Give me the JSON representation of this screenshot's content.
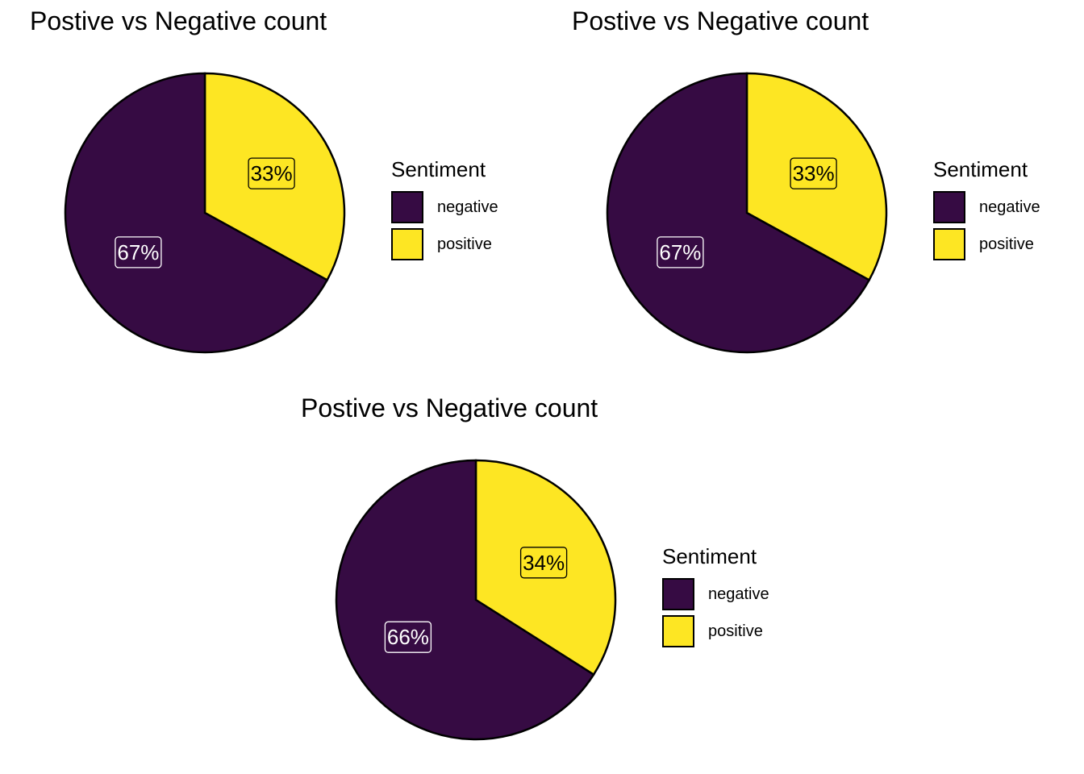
{
  "chart_data": [
    {
      "type": "pie",
      "title": "Postive vs Negative count",
      "legend_title": "Sentiment",
      "categories": [
        "negative",
        "positive"
      ],
      "values": [
        67,
        33
      ],
      "labels": [
        "67%",
        "33%"
      ],
      "colors": [
        "#360b43",
        "#fde623"
      ],
      "label_colors": [
        "#ffffff",
        "#000000"
      ],
      "legend_position": "right"
    },
    {
      "type": "pie",
      "title": "Postive vs Negative count",
      "legend_title": "Sentiment",
      "categories": [
        "negative",
        "positive"
      ],
      "values": [
        67,
        33
      ],
      "labels": [
        "67%",
        "33%"
      ],
      "colors": [
        "#360b43",
        "#fde623"
      ],
      "label_colors": [
        "#ffffff",
        "#000000"
      ],
      "legend_position": "right"
    },
    {
      "type": "pie",
      "title": "Postive vs Negative count",
      "legend_title": "Sentiment",
      "categories": [
        "negative",
        "positive"
      ],
      "values": [
        66,
        34
      ],
      "labels": [
        "66%",
        "34%"
      ],
      "colors": [
        "#360b43",
        "#fde623"
      ],
      "label_colors": [
        "#ffffff",
        "#000000"
      ],
      "legend_position": "right"
    }
  ]
}
